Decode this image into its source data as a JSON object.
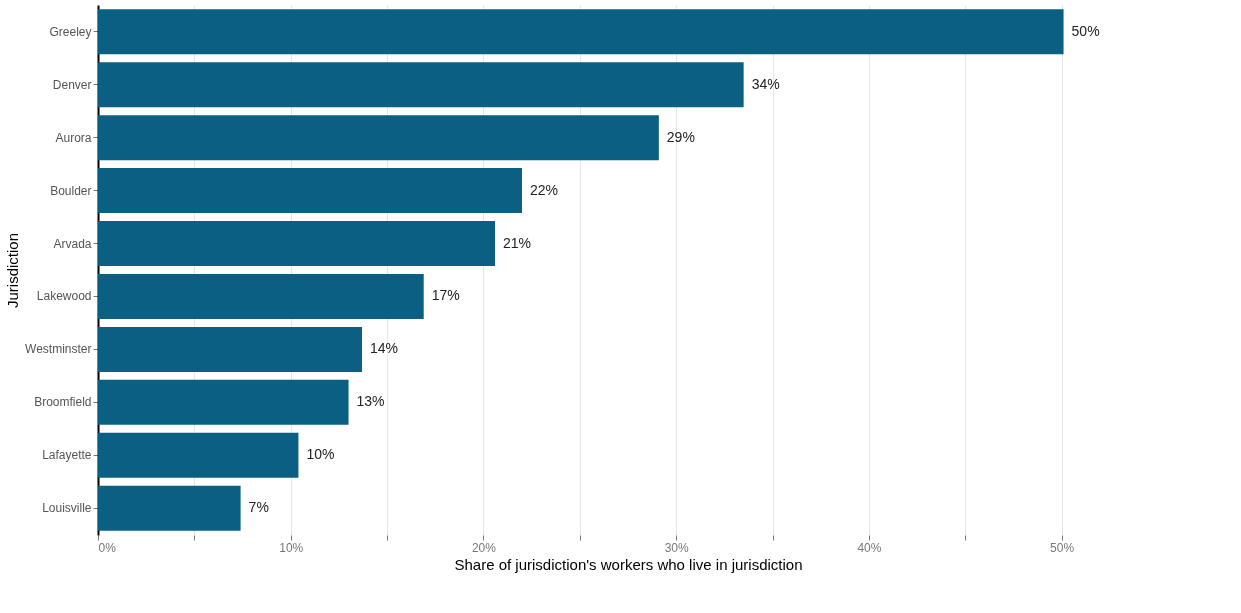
{
  "chart_data": {
    "type": "bar",
    "orientation": "horizontal",
    "xlabel": "Share of jurisdiction's workers who live in jurisdiction",
    "ylabel": "Jurisdiction",
    "categories": [
      "Greeley",
      "Denver",
      "Aurora",
      "Boulder",
      "Arvada",
      "Lakewood",
      "Westminster",
      "Broomfield",
      "Lafayette",
      "Louisville"
    ],
    "values": [
      50.1,
      33.5,
      29.1,
      22,
      20.6,
      16.9,
      13.7,
      13,
      10.4,
      7.4
    ],
    "value_labels": [
      "50%",
      "34%",
      "29%",
      "22%",
      "21%",
      "17%",
      "14%",
      "13%",
      "10%",
      "7%"
    ],
    "color": "#0b5f82",
    "xlim": [
      0,
      55
    ],
    "xticks": [
      {
        "value": 0,
        "label": "0%"
      },
      {
        "value": 5,
        "label": null
      },
      {
        "value": 10,
        "label": "10%"
      },
      {
        "value": 15,
        "label": null
      },
      {
        "value": 20,
        "label": "20%"
      },
      {
        "value": 25,
        "label": null
      },
      {
        "value": 30,
        "label": "30%"
      },
      {
        "value": 35,
        "label": null
      },
      {
        "value": 40,
        "label": "40%"
      },
      {
        "value": 45,
        "label": null
      },
      {
        "value": 50,
        "label": "50%"
      }
    ],
    "grid": "x"
  }
}
